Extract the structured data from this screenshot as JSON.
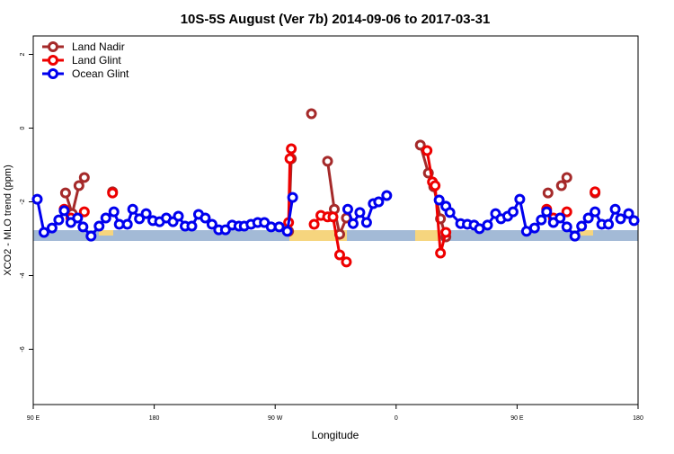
{
  "chart_data": {
    "type": "line",
    "title": "10S-5S August (Ver 7b)   2014-09-06 to 2017-03-31",
    "x_label": "Longitude",
    "y_label": "XCO2 - MLO trend (ppm)",
    "xlim": [
      90,
      540
    ],
    "ylim": [
      -7.5,
      2.5
    ],
    "xticks": [
      {
        "value": 90,
        "label": "90 E"
      },
      {
        "value": 180,
        "label": "180"
      },
      {
        "value": 270,
        "label": "90 W"
      },
      {
        "value": 360,
        "label": "0"
      },
      {
        "value": 450,
        "label": "90 E"
      },
      {
        "value": 540,
        "label": "180"
      }
    ],
    "yticks": [
      2,
      0,
      -2,
      -4,
      -6
    ],
    "legend": "top-left",
    "series": [
      {
        "name": "Land Nadir",
        "color": "#a52a2a",
        "x": [
          114,
          119,
          124,
          128,
          null,
          149,
          null,
          280,
          282,
          null,
          297,
          null,
          309,
          314,
          318,
          323,
          null,
          378,
          384,
          388,
          393,
          397,
          null,
          473,
          null,
          483,
          487,
          null,
          508
        ],
        "values": [
          -1.76,
          -2.32,
          -1.56,
          -1.34,
          null,
          -1.73,
          null,
          -2.8,
          -0.83,
          null,
          0.39,
          null,
          -0.9,
          -2.2,
          -2.88,
          -2.44,
          null,
          -0.46,
          -1.22,
          -1.59,
          -2.46,
          -2.95,
          null,
          -1.76,
          null,
          -1.56,
          -1.34,
          null,
          -1.76
        ]
      },
      {
        "name": "Land Glint",
        "color": "#ee0000",
        "x": [
          113,
          118,
          null,
          128,
          null,
          149,
          null,
          280,
          281,
          282,
          null,
          299,
          304,
          309,
          313,
          318,
          323,
          null,
          383,
          387,
          389,
          393,
          397,
          null,
          472,
          477,
          null,
          487,
          null,
          508
        ],
        "values": [
          -2.2,
          -2.44,
          null,
          -2.27,
          null,
          -1.76,
          null,
          -2.56,
          -0.83,
          -0.56,
          null,
          -2.61,
          -2.37,
          -2.41,
          -2.41,
          -3.44,
          -3.63,
          null,
          -0.61,
          -1.46,
          -1.56,
          -3.39,
          -2.83,
          null,
          -2.2,
          -2.44,
          null,
          -2.27,
          null,
          -1.73
        ]
      },
      {
        "name": "Ocean Glint",
        "color": "#0000ee",
        "x": [
          93,
          98,
          104,
          109,
          113,
          118,
          123,
          127,
          133,
          139,
          144,
          150,
          154,
          160,
          164,
          169,
          174,
          179,
          184,
          189,
          194,
          198,
          203,
          208,
          213,
          218,
          223,
          228,
          233,
          238,
          243,
          247,
          252,
          257,
          262,
          267,
          273,
          279,
          283,
          null,
          324,
          328,
          333,
          338,
          343,
          347,
          353,
          null,
          392,
          397,
          400,
          408,
          413,
          418,
          422,
          428,
          434,
          438,
          443,
          447,
          452,
          457,
          463,
          468,
          472,
          477,
          482,
          487,
          493,
          498,
          503,
          508,
          513,
          518,
          523,
          527,
          533,
          537
        ],
        "values": [
          -1.93,
          -2.83,
          -2.71,
          -2.49,
          -2.24,
          -2.56,
          -2.44,
          -2.68,
          -2.93,
          -2.66,
          -2.44,
          -2.27,
          -2.61,
          -2.61,
          -2.2,
          -2.46,
          -2.32,
          -2.51,
          -2.54,
          -2.44,
          -2.54,
          -2.39,
          -2.66,
          -2.66,
          -2.34,
          -2.44,
          -2.61,
          -2.76,
          -2.76,
          -2.63,
          -2.66,
          -2.66,
          -2.61,
          -2.56,
          -2.56,
          -2.68,
          -2.68,
          -2.8,
          -1.88,
          null,
          -2.2,
          -2.59,
          -2.29,
          -2.56,
          -2.05,
          -2.0,
          -1.83,
          null,
          -1.95,
          -2.12,
          -2.29,
          -2.59,
          -2.61,
          -2.63,
          -2.73,
          -2.63,
          -2.32,
          -2.46,
          -2.39,
          -2.27,
          -1.93,
          -2.8,
          -2.71,
          -2.49,
          -2.27,
          -2.56,
          -2.44,
          -2.68,
          -2.93,
          -2.66,
          -2.44,
          -2.27,
          -2.61,
          -2.61,
          -2.2,
          -2.46,
          -2.32,
          -2.51
        ]
      }
    ]
  }
}
